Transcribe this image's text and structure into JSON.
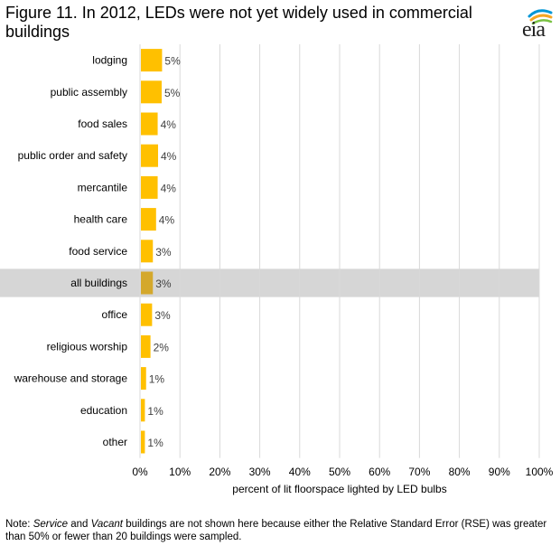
{
  "title": "Figure 11. In 2012, LEDs were not yet widely used in commercial buildings",
  "logo": {
    "text": "eia",
    "icon": "eia-logo-arcs",
    "arc_colors": [
      "#0096d6",
      "#f5a623",
      "#7ac143"
    ]
  },
  "colors": {
    "bar": "#ffc000",
    "highlight_bar": "#d4a82c",
    "highlight_band": "#d6d6d6",
    "grid": "#d9d9d9",
    "text": "#404040"
  },
  "chart_data": {
    "type": "bar",
    "orientation": "horizontal",
    "title": "Figure 11. In 2012, LEDs were not yet widely used in commercial buildings",
    "xlabel": "percent of lit floorspace lighted by LED bulbs",
    "ylabel": "",
    "xlim": [
      0,
      100
    ],
    "xticks": [
      0,
      10,
      20,
      30,
      40,
      50,
      60,
      70,
      80,
      90,
      100
    ],
    "xtick_labels": [
      "0%",
      "10%",
      "20%",
      "30%",
      "40%",
      "50%",
      "60%",
      "70%",
      "80%",
      "90%",
      "100%"
    ],
    "grid": true,
    "categories": [
      "lodging",
      "public assembly",
      "food sales",
      "public order and safety",
      "mercantile",
      "health care",
      "food service",
      "all buildings",
      "office",
      "religious worship",
      "warehouse and storage",
      "education",
      "other"
    ],
    "values": [
      5.3,
      5.2,
      4.2,
      4.3,
      4.2,
      3.8,
      3.0,
      3.0,
      2.8,
      2.4,
      1.3,
      1.0,
      1.0
    ],
    "data_labels": [
      "5%",
      "5%",
      "4%",
      "4%",
      "4%",
      "4%",
      "3%",
      "3%",
      "3%",
      "2%",
      "1%",
      "1%",
      "1%"
    ],
    "highlight": "all buildings"
  },
  "note": {
    "prefix": "Note: ",
    "italic1": "Service",
    "middle1": " and ",
    "italic2": "Vacant",
    "rest": " buildings are not shown here because either the Relative Standard Error (RSE) was greater than 50% or fewer than 20 buildings were sampled."
  }
}
